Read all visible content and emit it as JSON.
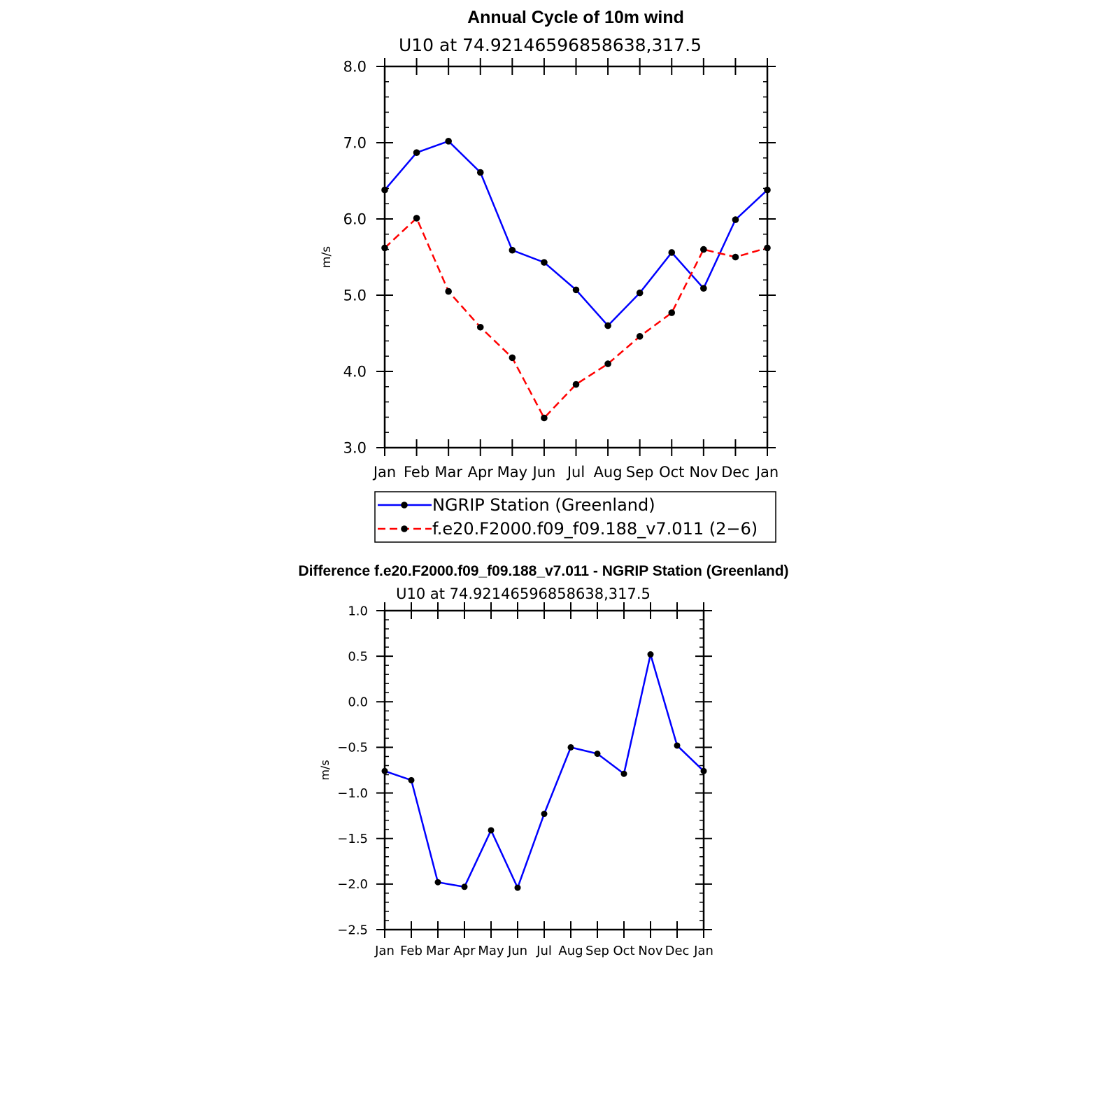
{
  "chart_data": [
    {
      "type": "line",
      "title": "Annual Cycle of 10m wind",
      "subtitle": "U10 at 74.92146596858638,317.5",
      "xlabel": "",
      "ylabel": "m/s",
      "categories": [
        "Jan",
        "Feb",
        "Mar",
        "Apr",
        "May",
        "Jun",
        "Jul",
        "Aug",
        "Sep",
        "Oct",
        "Nov",
        "Dec",
        "Jan"
      ],
      "ylim": [
        3.0,
        8.0
      ],
      "yticks": [
        "3.0",
        "4.0",
        "5.0",
        "6.0",
        "7.0",
        "8.0"
      ],
      "grid": false,
      "legend_position": "bottom",
      "series": [
        {
          "name": "NGRIP Station (Greenland)",
          "color": "#0000ff",
          "dash": "solid",
          "values": [
            6.38,
            6.87,
            7.02,
            6.61,
            5.59,
            5.43,
            5.07,
            4.6,
            5.03,
            5.56,
            5.09,
            5.99,
            6.38
          ]
        },
        {
          "name": "f.e20.F2000.f09_f09.188_v7.011 (2−6)",
          "color": "#ff0000",
          "dash": "dashed",
          "values": [
            5.62,
            6.01,
            5.05,
            4.58,
            4.18,
            3.39,
            3.83,
            4.1,
            4.46,
            4.77,
            5.6,
            5.5,
            5.62
          ]
        }
      ]
    },
    {
      "type": "line",
      "title": "Difference f.e20.F2000.f09_f09.188_v7.011 - NGRIP Station (Greenland)",
      "subtitle": "U10 at 74.92146596858638,317.5",
      "xlabel": "",
      "ylabel": "m/s",
      "categories": [
        "Jan",
        "Feb",
        "Mar",
        "Apr",
        "May",
        "Jun",
        "Jul",
        "Aug",
        "Sep",
        "Oct",
        "Nov",
        "Dec",
        "Jan"
      ],
      "ylim": [
        -2.5,
        1.0
      ],
      "yticks": [
        "−2.5",
        "−2.0",
        "−1.5",
        "−1.0",
        "−0.5",
        "0.0",
        "0.5",
        "1.0"
      ],
      "grid": false,
      "series": [
        {
          "color": "#0000ff",
          "dash": "solid",
          "values": [
            -0.76,
            -0.86,
            -1.98,
            -2.03,
            -1.41,
            -2.04,
            -1.23,
            -0.5,
            -0.57,
            -0.79,
            0.52,
            -0.48,
            -0.76
          ]
        }
      ]
    }
  ]
}
